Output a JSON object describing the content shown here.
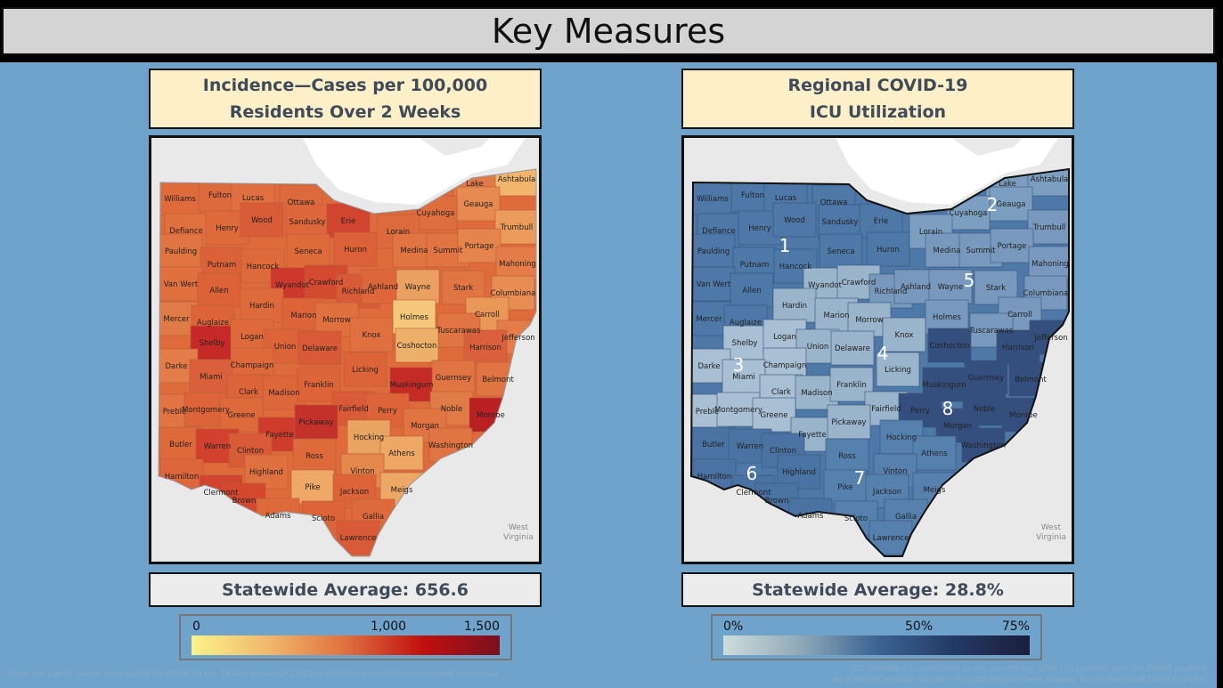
{
  "header": {
    "title": "Key Measures"
  },
  "incidence": {
    "title_line1": "Incidence—Cases per 100,000",
    "title_line2": "Residents Over 2 Weeks",
    "statewide": "Statewide Average: 656.6",
    "legend": {
      "ticks": [
        "0",
        "1,000",
        "1,500"
      ],
      "colors": [
        "#fbf38a",
        "#f0b86a",
        "#e0703e",
        "#c0100e",
        "#7a1020"
      ]
    },
    "note": "Cases per capita values were pulled on 01/06 for the 14-day period of 12/23 to 01/05 and exclude incarcerated individuals.",
    "neighbor_label": "West Virginia"
  },
  "icu": {
    "title_line1": "Regional COVID-19",
    "title_line2": "ICU Utilization",
    "statewide": "Statewide Average: 28.8%",
    "legend": {
      "ticks": [
        "0%",
        "50%",
        "75%"
      ],
      "colors": [
        "#cfdcdc",
        "#8fa9b9",
        "#3c6594",
        "#243a66",
        "#1c1e3c"
      ]
    },
    "note_line1": "ICU utilization is calculated as the percentage of all ICU patients who are COVID positive,",
    "note_line2": "as a weekly average for each Hospital Preparedness Region, for the period of 12/30 to 01/05.",
    "neighbor_label": "West Virginia",
    "regions": {
      "1": {
        "label": "1",
        "color": "#4d78a8"
      },
      "2": {
        "label": "2",
        "color": "#7c9ec0"
      },
      "3": {
        "label": "3",
        "color": "#a9bfd3"
      },
      "4": {
        "label": "4",
        "color": "#9ab4cb"
      },
      "5": {
        "label": "5",
        "color": "#7899bd"
      },
      "6": {
        "label": "6",
        "color": "#4a73a3"
      },
      "7": {
        "label": "7",
        "color": "#5680ad"
      },
      "8": {
        "label": "8",
        "color": "#344f7e"
      }
    }
  },
  "counties": [
    {
      "name": "Williams",
      "c": "#df6a3c",
      "r": "1"
    },
    {
      "name": "Fulton",
      "c": "#dd6a3c",
      "r": "1"
    },
    {
      "name": "Lucas",
      "c": "#e07040",
      "r": "1"
    },
    {
      "name": "Ottawa",
      "c": "#dd6a3c",
      "r": "1"
    },
    {
      "name": "Lake",
      "c": "#e07a48",
      "r": "2"
    },
    {
      "name": "Ashtabula",
      "c": "#f1b56c",
      "r": "2"
    },
    {
      "name": "Geauga",
      "c": "#e78a52",
      "r": "2"
    },
    {
      "name": "Cuyahoga",
      "c": "#df6e3e",
      "r": "2"
    },
    {
      "name": "Trumbull",
      "c": "#eb9c5c",
      "r": "5"
    },
    {
      "name": "Defiance",
      "c": "#e0703e",
      "r": "1"
    },
    {
      "name": "Henry",
      "c": "#de6a3c",
      "r": "1"
    },
    {
      "name": "Wood",
      "c": "#d85c38",
      "r": "1"
    },
    {
      "name": "Sandusky",
      "c": "#dd663a",
      "r": "1"
    },
    {
      "name": "Erie",
      "c": "#d04430",
      "r": "1"
    },
    {
      "name": "Lorain",
      "c": "#dd6a3c",
      "r": "2"
    },
    {
      "name": "Paulding",
      "c": "#e07442",
      "r": "1"
    },
    {
      "name": "Seneca",
      "c": "#de6a3c",
      "r": "1"
    },
    {
      "name": "Huron",
      "c": "#dc6038",
      "r": "1"
    },
    {
      "name": "Medina",
      "c": "#e07442",
      "r": "5"
    },
    {
      "name": "Summit",
      "c": "#e07442",
      "r": "5"
    },
    {
      "name": "Portage",
      "c": "#e5844c",
      "r": "5"
    },
    {
      "name": "Mahoning",
      "c": "#e37c48",
      "r": "5"
    },
    {
      "name": "Putnam",
      "c": "#db6238",
      "r": "1"
    },
    {
      "name": "Hancock",
      "c": "#de6a3c",
      "r": "1"
    },
    {
      "name": "Van Wert",
      "c": "#e07040",
      "r": "1"
    },
    {
      "name": "Allen",
      "c": "#dc6238",
      "r": "1"
    },
    {
      "name": "Wyandot",
      "c": "#ce382c",
      "r": "4"
    },
    {
      "name": "Crawford",
      "c": "#d34a30",
      "r": "4"
    },
    {
      "name": "Richland",
      "c": "#d85a36",
      "r": "5"
    },
    {
      "name": "Ashland",
      "c": "#dd663a",
      "r": "5"
    },
    {
      "name": "Wayne",
      "c": "#eaa060",
      "r": "5"
    },
    {
      "name": "Stark",
      "c": "#e07442",
      "r": "5"
    },
    {
      "name": "Columbiana",
      "c": "#e78c52",
      "r": "5"
    },
    {
      "name": "Hardin",
      "c": "#de6a3c",
      "r": "4"
    },
    {
      "name": "Marion",
      "c": "#dc6438",
      "r": "4"
    },
    {
      "name": "Morrow",
      "c": "#e07040",
      "r": "4"
    },
    {
      "name": "Holmes",
      "c": "#f4c77a",
      "r": "5"
    },
    {
      "name": "Carroll",
      "c": "#e99858",
      "r": "5"
    },
    {
      "name": "Mercer",
      "c": "#e07a46",
      "r": "1"
    },
    {
      "name": "Auglaize",
      "c": "#dc6438",
      "r": "1"
    },
    {
      "name": "Tuscarawas",
      "c": "#e07442",
      "r": "5"
    },
    {
      "name": "Jefferson",
      "c": "#e37c48",
      "r": "8"
    },
    {
      "name": "Shelby",
      "c": "#c62a28",
      "r": "3"
    },
    {
      "name": "Logan",
      "c": "#de6a3c",
      "r": "3"
    },
    {
      "name": "Union",
      "c": "#dc6438",
      "r": "4"
    },
    {
      "name": "Delaware",
      "c": "#d85a36",
      "r": "4"
    },
    {
      "name": "Knox",
      "c": "#e07040",
      "r": "4"
    },
    {
      "name": "Coshocton",
      "c": "#edb06a",
      "r": "8"
    },
    {
      "name": "Harrison",
      "c": "#d9603a",
      "r": "8"
    },
    {
      "name": "Darke",
      "c": "#e37c48",
      "r": "3"
    },
    {
      "name": "Champaign",
      "c": "#de6a3c",
      "r": "3"
    },
    {
      "name": "Miami",
      "c": "#d9603a",
      "r": "3"
    },
    {
      "name": "Licking",
      "c": "#dc6438",
      "r": "4"
    },
    {
      "name": "Muskingum",
      "c": "#c42a26",
      "r": "8"
    },
    {
      "name": "Guernsey",
      "c": "#e07442",
      "r": "8"
    },
    {
      "name": "Belmont",
      "c": "#e07442",
      "r": "8"
    },
    {
      "name": "Clark",
      "c": "#dc6438",
      "r": "3"
    },
    {
      "name": "Madison",
      "c": "#dd663a",
      "r": "4"
    },
    {
      "name": "Franklin",
      "c": "#dc6438",
      "r": "4"
    },
    {
      "name": "Preble",
      "c": "#e07442",
      "r": "3"
    },
    {
      "name": "Montgomery",
      "c": "#dc6438",
      "r": "3"
    },
    {
      "name": "Greene",
      "c": "#de6a3c",
      "r": "3"
    },
    {
      "name": "Fairfield",
      "c": "#d85a36",
      "r": "4"
    },
    {
      "name": "Perry",
      "c": "#dc6438",
      "r": "8"
    },
    {
      "name": "Noble",
      "c": "#e07a46",
      "r": "8"
    },
    {
      "name": "Monroe",
      "c": "#b82024",
      "r": "8"
    },
    {
      "name": "Fayette",
      "c": "#cf3c2c",
      "r": "4"
    },
    {
      "name": "Pickaway",
      "c": "#c4302a",
      "r": "4"
    },
    {
      "name": "Morgan",
      "c": "#e07442",
      "r": "8"
    },
    {
      "name": "Butler",
      "c": "#de6a3c",
      "r": "6"
    },
    {
      "name": "Warren",
      "c": "#d2402e",
      "r": "6"
    },
    {
      "name": "Clinton",
      "c": "#d85a36",
      "r": "6"
    },
    {
      "name": "Hocking",
      "c": "#eaa462",
      "r": "7"
    },
    {
      "name": "Washington",
      "c": "#e07442",
      "r": "8"
    },
    {
      "name": "Athens",
      "c": "#eca864",
      "r": "7"
    },
    {
      "name": "Ross",
      "c": "#de6a3c",
      "r": "7"
    },
    {
      "name": "Hamilton",
      "c": "#dd663a",
      "r": "6"
    },
    {
      "name": "Highland",
      "c": "#e07040",
      "r": "6"
    },
    {
      "name": "Vinton",
      "c": "#e5884e",
      "r": "7"
    },
    {
      "name": "Clermont",
      "c": "#d34430",
      "r": "6"
    },
    {
      "name": "Brown",
      "c": "#d54830",
      "r": "6"
    },
    {
      "name": "Pike",
      "c": "#eea868",
      "r": "7"
    },
    {
      "name": "Jackson",
      "c": "#dc6438",
      "r": "7"
    },
    {
      "name": "Meigs",
      "c": "#eca864",
      "r": "7"
    },
    {
      "name": "Adams",
      "c": "#de6a3c",
      "r": "6"
    },
    {
      "name": "Scioto",
      "c": "#dc6438",
      "r": "7"
    },
    {
      "name": "Gallia",
      "c": "#de6a3c",
      "r": "7"
    },
    {
      "name": "Lawrence",
      "c": "#d85a36",
      "r": "7"
    }
  ]
}
